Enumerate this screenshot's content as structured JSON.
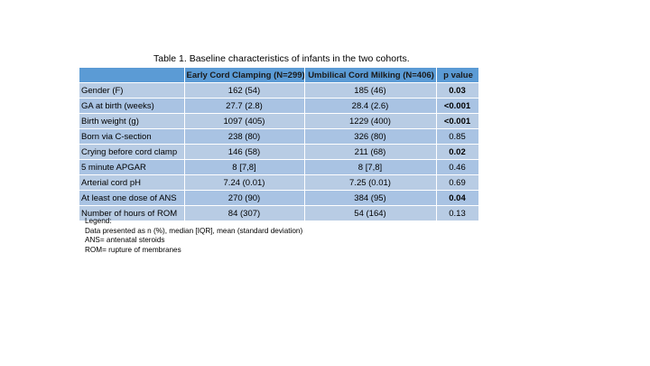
{
  "caption": "Table 1. Baseline characteristics of infants in the two cohorts.",
  "columns": [
    "",
    "Early Cord Clamping (N=299)",
    "Umbilical Cord Milking (N=406)",
    "p value"
  ],
  "rows": [
    {
      "label": "Gender (F)",
      "ecc": "162 (54)",
      "ucm": "185 (46)",
      "p": "0.03",
      "bold": true
    },
    {
      "label": "GA at birth (weeks)",
      "ecc": "27.7 (2.8)",
      "ucm": "28.4 (2.6)",
      "p": "<0.001",
      "bold": true
    },
    {
      "label": "Birth weight (g)",
      "ecc": "1097 (405)",
      "ucm": "1229 (400)",
      "p": "<0.001",
      "bold": true
    },
    {
      "label": "Born via C-section",
      "ecc": "238 (80)",
      "ucm": "326 (80)",
      "p": "0.85",
      "bold": false
    },
    {
      "label": "Crying before cord clamp",
      "ecc": "146 (58)",
      "ucm": "211 (68)",
      "p": "0.02",
      "bold": true
    },
    {
      "label": "5 minute APGAR",
      "ecc": "8 [7,8]",
      "ucm": "8 [7,8]",
      "p": "0.46",
      "bold": false
    },
    {
      "label": "Arterial cord pH",
      "ecc": "7.24 (0.01)",
      "ucm": "7.25 (0.01)",
      "p": "0.69",
      "bold": false
    },
    {
      "label": "At least one dose of ANS",
      "ecc": "270 (90)",
      "ucm": "384 (95)",
      "p": "0.04",
      "bold": true
    },
    {
      "label": "Number of hours of ROM",
      "ecc": "84 (307)",
      "ucm": "54 (164)",
      "p": "0.13",
      "bold": false
    }
  ],
  "legend": [
    "Legend:",
    "Data presented as n (%), median [IQR], mean (standard deviation)",
    "ANS= antenatal steroids",
    "ROM= rupture of membranes"
  ],
  "colors": {
    "header": "#5b9bd5",
    "row_light": "#b8cce4",
    "row_dark": "#a9c3e3"
  }
}
